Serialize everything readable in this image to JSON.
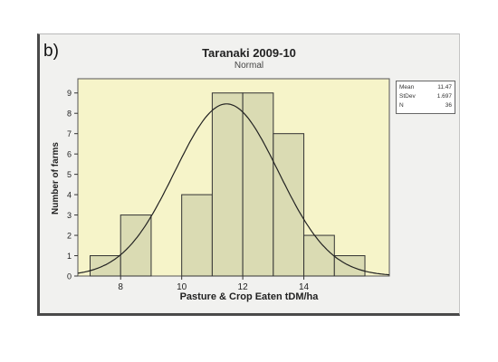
{
  "panel_label": "b)",
  "chart_data": {
    "type": "bar",
    "title": "Taranaki 2009-10",
    "subtitle": "Normal",
    "xlabel": "Pasture & Crop Eaten tDM/ha",
    "ylabel": "Number of farms",
    "bins": [
      {
        "from": 7,
        "to": 8,
        "count": 1
      },
      {
        "from": 8,
        "to": 9,
        "count": 3
      },
      {
        "from": 9,
        "to": 10,
        "count": 0
      },
      {
        "from": 10,
        "to": 11,
        "count": 4
      },
      {
        "from": 11,
        "to": 12,
        "count": 9
      },
      {
        "from": 12,
        "to": 13,
        "count": 9
      },
      {
        "from": 13,
        "to": 14,
        "count": 7
      },
      {
        "from": 14,
        "to": 15,
        "count": 2
      },
      {
        "from": 15,
        "to": 16,
        "count": 1
      }
    ],
    "x_ticks": [
      8,
      10,
      12,
      14
    ],
    "y_ticks": [
      0,
      1,
      2,
      3,
      4,
      5,
      6,
      7,
      8,
      9
    ],
    "xlim": [
      6.6,
      16.8
    ],
    "ylim": [
      0,
      9.7
    ],
    "fit": {
      "type": "normal",
      "mean": 11.47,
      "stdev": 1.697,
      "n": 36
    },
    "stats_box": [
      {
        "label": "Mean",
        "value": "11.47"
      },
      {
        "label": "StDev",
        "value": "1.697"
      },
      {
        "label": "N",
        "value": "36"
      }
    ],
    "colors": {
      "plot_background": "#f6f4c9",
      "bar_fill": "#dadbb3",
      "bar_stroke": "#333333",
      "curve": "#222222"
    }
  }
}
